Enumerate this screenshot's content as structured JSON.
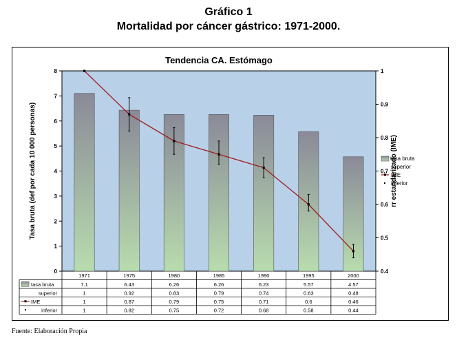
{
  "header": {
    "line1": "Gráfico 1",
    "line2": "Mortalidad por cáncer gástrico: 1971-2000."
  },
  "footer": {
    "source": "Fuente: Elaboración Propia"
  },
  "colors": {
    "plot_bg": "#b8d0e8",
    "bar_top": "#8a8a98",
    "bar_bottom": "#b8dcae",
    "line": "#a01c1c",
    "error_bar": "#000000"
  },
  "chart_data": {
    "type": "bar",
    "title": "Tendencia CA. Estómago",
    "ylabel": "Tasa bruta (def por cada 10 000 personas)",
    "y2label": "rr estandarizado (IME)",
    "categories": [
      "1971",
      "1975",
      "1980",
      "1985",
      "1990",
      "1995",
      "2000"
    ],
    "ylim": [
      0,
      8
    ],
    "yticks": [
      "0",
      "1",
      "2",
      "3",
      "4",
      "5",
      "6",
      "7",
      "8"
    ],
    "y2lim": [
      0.4,
      1
    ],
    "y2ticks": [
      "0.4",
      "0.5",
      "0.6",
      "0.7",
      "0.8",
      "0.9",
      "1"
    ],
    "grid": false,
    "legend_position": "right",
    "series": [
      {
        "name": "tasa bruta",
        "axis": "left",
        "kind": "bar",
        "values": [
          7.1,
          6.43,
          6.26,
          6.26,
          6.23,
          5.57,
          4.57
        ],
        "labels": [
          "7.1",
          "6.43",
          "6.26",
          "6.26",
          "6.23",
          "5.57",
          "4.57"
        ]
      },
      {
        "name": "superior",
        "axis": "right",
        "kind": "error-upper",
        "values": [
          1,
          0.92,
          0.83,
          0.79,
          0.74,
          0.63,
          0.48
        ],
        "labels": [
          "1",
          "0.92",
          "0.83",
          "0.79",
          "0.74",
          "0.63",
          "0.48"
        ]
      },
      {
        "name": "IME",
        "axis": "right",
        "kind": "line",
        "values": [
          1,
          0.87,
          0.79,
          0.75,
          0.71,
          0.6,
          0.46
        ],
        "labels": [
          "1",
          "0.87",
          "0.79",
          "0.75",
          "0.71",
          "0.6",
          "0.46"
        ]
      },
      {
        "name": "inferior",
        "axis": "right",
        "kind": "error-lower",
        "values": [
          1,
          0.82,
          0.75,
          0.72,
          0.68,
          0.58,
          0.44
        ],
        "labels": [
          "1",
          "0.82",
          "0.75",
          "0.72",
          "0.68",
          "0.58",
          "0.44"
        ]
      }
    ]
  }
}
